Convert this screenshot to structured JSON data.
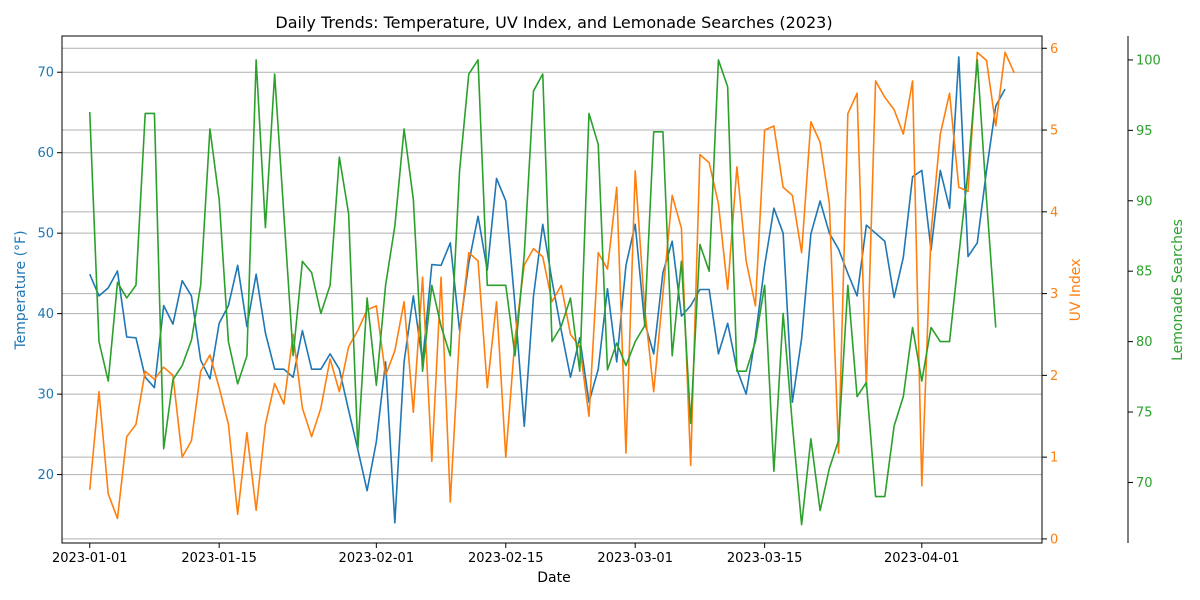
{
  "chart_data": {
    "type": "line",
    "title": "Daily Trends: Temperature, UV Index, and Lemonade Searches (2023)",
    "xlabel": "Date",
    "x_ticks": [
      "2023-01-01",
      "2023-01-15",
      "2023-02-01",
      "2023-02-15",
      "2023-03-01",
      "2023-03-15",
      "2023-04-01"
    ],
    "x_start": "2023-01-01",
    "x_range": [
      "2022-12-29",
      "2023-04-14"
    ],
    "grid": "horizontal",
    "axes": {
      "temperature": {
        "label": "Temperature (°F)",
        "ylim": [
          11.5,
          74.5
        ],
        "ticks": [
          20,
          30,
          40,
          50,
          60,
          70
        ],
        "color": "#1f77b4"
      },
      "uv": {
        "label": "UV Index",
        "ylim": [
          -0.05,
          6.15
        ],
        "ticks": [
          0,
          1,
          2,
          3,
          4,
          5,
          6
        ],
        "color": "#ff7f0e"
      },
      "searches": {
        "label": "Lemonade Searches",
        "ylim": [
          65.7,
          101.7
        ],
        "ticks": [
          70,
          75,
          80,
          85,
          90,
          95,
          100
        ],
        "color": "#2ca02c"
      }
    },
    "series": [
      {
        "axis": "temperature",
        "color": "#1f77b4",
        "values": [
          44.9,
          42.2,
          43.2,
          45.3,
          37.1,
          37.0,
          32.1,
          30.8,
          41.0,
          38.7,
          44.1,
          42.2,
          34.2,
          31.9,
          38.8,
          41.0,
          46.0,
          38.4,
          44.9,
          37.6,
          33.1,
          33.1,
          32.1,
          37.9,
          33.1,
          33.1,
          35.0,
          33.1,
          28.0,
          23.1,
          18.0,
          24.1,
          34.0,
          14.0,
          34.0,
          42.2,
          34.0,
          46.1,
          46.0,
          48.8,
          37.9,
          46.3,
          52.1,
          45.4,
          56.8,
          54.0,
          41.0,
          26.0,
          42.2,
          51.1,
          44.1,
          37.9,
          32.1,
          37.0,
          29.0,
          33.1,
          43.1,
          34.0,
          46.0,
          51.1,
          39.0,
          35.0,
          45.1,
          49.0,
          39.7,
          41.0,
          43.0,
          43.0,
          35.0,
          38.8,
          33.1,
          30.0,
          37.1,
          46.0,
          53.1,
          50.0,
          29.0,
          36.9,
          49.9,
          54.0,
          50.0,
          48.0,
          45.0,
          42.2,
          51.0,
          50.0,
          49.0,
          42.0,
          47.0,
          57.0,
          57.8,
          47.9,
          57.8,
          53.1,
          71.9,
          47.1,
          48.8,
          57.8,
          65.8,
          67.9
        ]
      },
      {
        "axis": "uv",
        "color": "#ff7f0e",
        "values": [
          0.6,
          1.8,
          0.55,
          0.25,
          1.25,
          1.4,
          2.05,
          1.95,
          2.1,
          2.0,
          1.0,
          1.2,
          2.05,
          2.25,
          1.85,
          1.4,
          0.3,
          1.3,
          0.35,
          1.4,
          1.9,
          1.65,
          2.5,
          1.6,
          1.25,
          1.6,
          2.2,
          1.8,
          2.35,
          2.55,
          2.8,
          2.85,
          2.0,
          2.3,
          2.9,
          1.55,
          3.2,
          0.95,
          3.2,
          0.45,
          2.5,
          3.5,
          3.4,
          1.85,
          2.9,
          1.0,
          2.45,
          3.35,
          3.55,
          3.45,
          2.9,
          3.1,
          2.5,
          2.35,
          1.5,
          3.5,
          3.3,
          4.3,
          1.05,
          4.5,
          2.85,
          1.8,
          3.0,
          4.2,
          3.8,
          0.9,
          4.7,
          4.6,
          4.1,
          3.05,
          4.55,
          3.4,
          2.85,
          5.0,
          5.05,
          4.3,
          4.2,
          3.5,
          5.1,
          4.85,
          4.1,
          1.05,
          5.2,
          5.45,
          1.85,
          5.6,
          5.4,
          5.25,
          4.95,
          5.6,
          0.65,
          3.75,
          4.95,
          5.45,
          4.3,
          4.25,
          5.95,
          5.85,
          5.05,
          5.95,
          5.7
        ]
      },
      {
        "axis": "searches",
        "color": "#2ca02c",
        "values": [
          96.3,
          80.0,
          77.2,
          84.2,
          83.1,
          84.0,
          96.2,
          96.2,
          72.4,
          77.3,
          78.3,
          80.1,
          84.0,
          95.1,
          90.1,
          80.0,
          77.0,
          79.0,
          100.0,
          88.1,
          99.0,
          89.0,
          79.0,
          85.7,
          84.9,
          82.0,
          84.0,
          93.1,
          89.1,
          72.4,
          83.1,
          76.9,
          84.0,
          88.2,
          95.1,
          90.1,
          77.9,
          84.0,
          81.1,
          79.0,
          92.1,
          99.0,
          100.0,
          84.0,
          84.0,
          84.0,
          79.0,
          86.2,
          97.8,
          99.0,
          80.0,
          81.1,
          83.1,
          77.9,
          96.2,
          94.0,
          78.0,
          79.9,
          78.3,
          80.0,
          81.1,
          94.9,
          94.9,
          79.0,
          85.7,
          74.2,
          86.9,
          85.0,
          100.0,
          98.1,
          77.9,
          77.9,
          80.0,
          84.0,
          70.8,
          82.0,
          74.1,
          67.0,
          73.1,
          68.0,
          71.0,
          73.0,
          84.0,
          76.1,
          77.1,
          69.0,
          69.0,
          74.0,
          76.1,
          81.0,
          77.2,
          81.0,
          80.0,
          80.0,
          86.1,
          92.1,
          100.0,
          90.1,
          81.0
        ]
      }
    ]
  }
}
